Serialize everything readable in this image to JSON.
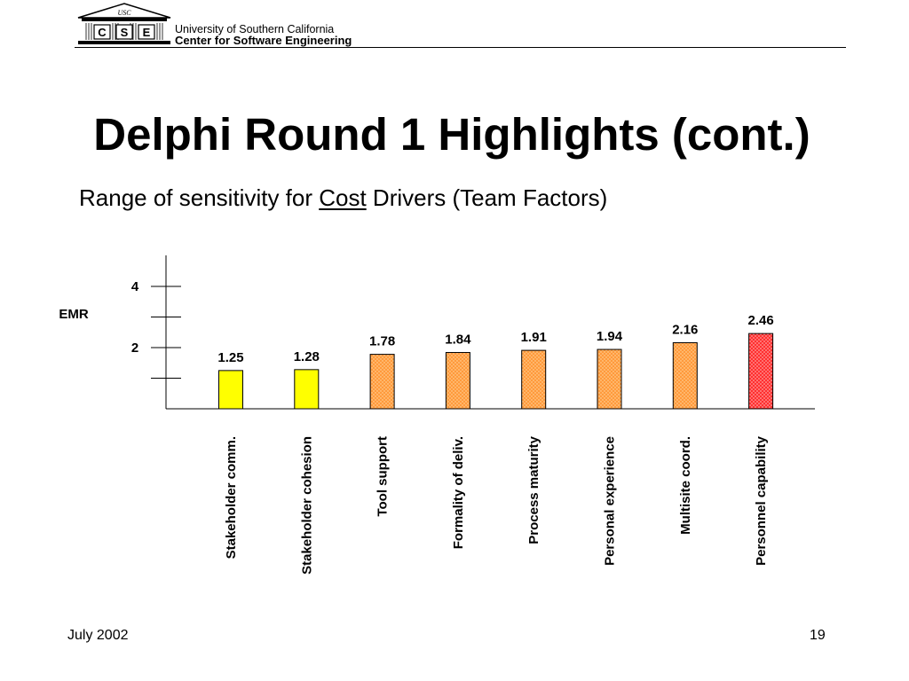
{
  "header": {
    "logo": {
      "text": "CSE",
      "banner": "USC"
    },
    "university": "University of Southern California",
    "center": "Center for Software Engineering"
  },
  "slide": {
    "title": "Delphi Round 1 Highlights (cont.)",
    "subtitle_before": "Range of sensitivity for ",
    "subtitle_underlined": "Cost",
    "subtitle_after": " Drivers (Team Factors)"
  },
  "chart_data": {
    "type": "bar",
    "title": "",
    "ylabel": "EMR",
    "xlabel": "",
    "ylim": [
      0,
      4
    ],
    "y_ticks": [
      2,
      4
    ],
    "y_tick_labels": [
      "2",
      "4"
    ],
    "grid": false,
    "categories": [
      "Stakeholder comm.",
      "Stakeholder cohesion",
      "Tool support",
      "Formality of deliv.",
      "Process maturity",
      "Personal experience",
      "Multisite coord.",
      "Personnel capability"
    ],
    "values": [
      1.25,
      1.28,
      1.78,
      1.84,
      1.91,
      1.94,
      2.16,
      2.46
    ],
    "data_labels": [
      "1.25",
      "1.28",
      "1.78",
      "1.84",
      "1.91",
      "1.94",
      "2.16",
      "2.46"
    ],
    "bar_colors": [
      "#ffff00",
      "#ffff00",
      "#ff9a3c",
      "#ff9a3c",
      "#ff9a3c",
      "#ff9a3c",
      "#ff9a3c",
      "#ff3030"
    ]
  },
  "footer": {
    "date": "July 2002",
    "page": "19"
  }
}
